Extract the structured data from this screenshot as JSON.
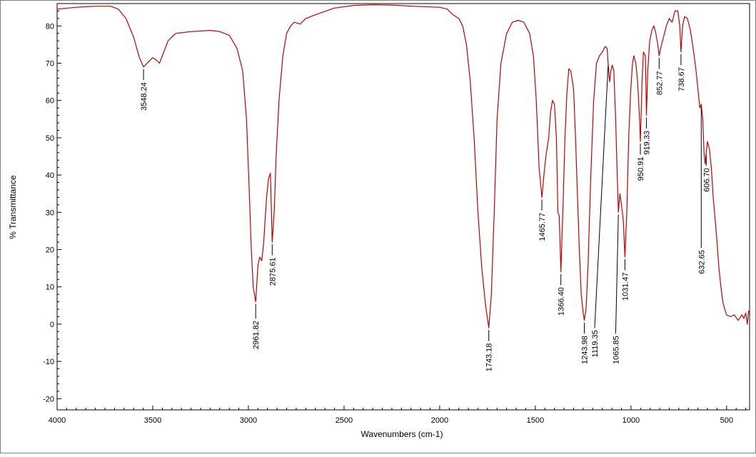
{
  "chart_data": {
    "type": "line",
    "title": "",
    "xlabel": "Wavenumbers (cm-1)",
    "ylabel": "% Transmittance",
    "xlim": [
      4000,
      380
    ],
    "ylim": [
      -23,
      86
    ],
    "x_ticks": [
      4000,
      3500,
      3000,
      2500,
      2000,
      1500,
      1000,
      500
    ],
    "y_ticks": [
      80,
      70,
      60,
      50,
      40,
      30,
      20,
      10,
      0,
      -10,
      -20
    ],
    "grid": false,
    "legend": "none",
    "colors": {
      "line": "#c00000",
      "axes": "#000000",
      "background": "#ffffff"
    },
    "series": [
      {
        "points": [
          [
            4000,
            84.5
          ],
          [
            3900,
            85
          ],
          [
            3800,
            85.3
          ],
          [
            3720,
            85.3
          ],
          [
            3680,
            84.5
          ],
          [
            3640,
            82
          ],
          [
            3600,
            77
          ],
          [
            3570,
            71.5
          ],
          [
            3548.24,
            69
          ],
          [
            3520,
            70.5
          ],
          [
            3500,
            71.5
          ],
          [
            3480,
            70.8
          ],
          [
            3465,
            70
          ],
          [
            3450,
            72
          ],
          [
            3420,
            76
          ],
          [
            3380,
            78
          ],
          [
            3300,
            78.5
          ],
          [
            3200,
            78.8
          ],
          [
            3150,
            78.5
          ],
          [
            3100,
            77.5
          ],
          [
            3060,
            74
          ],
          [
            3030,
            68
          ],
          [
            3010,
            55
          ],
          [
            2995,
            35
          ],
          [
            2985,
            20
          ],
          [
            2975,
            10
          ],
          [
            2961.82,
            6
          ],
          [
            2950,
            16
          ],
          [
            2940,
            18
          ],
          [
            2930,
            17
          ],
          [
            2920,
            22
          ],
          [
            2905,
            34
          ],
          [
            2895,
            39
          ],
          [
            2885,
            40.5
          ],
          [
            2875.61,
            22
          ],
          [
            2865,
            30
          ],
          [
            2855,
            45
          ],
          [
            2840,
            60
          ],
          [
            2820,
            72
          ],
          [
            2800,
            78
          ],
          [
            2780,
            80
          ],
          [
            2760,
            81
          ],
          [
            2730,
            80.5
          ],
          [
            2700,
            82
          ],
          [
            2650,
            83
          ],
          [
            2550,
            84.8
          ],
          [
            2450,
            85.5
          ],
          [
            2350,
            85.7
          ],
          [
            2250,
            85.6
          ],
          [
            2100,
            85.2
          ],
          [
            2000,
            85
          ],
          [
            1960,
            84.5
          ],
          [
            1930,
            83
          ],
          [
            1900,
            82
          ],
          [
            1880,
            80
          ],
          [
            1860,
            75
          ],
          [
            1840,
            65
          ],
          [
            1820,
            50
          ],
          [
            1800,
            30
          ],
          [
            1780,
            15
          ],
          [
            1760,
            5
          ],
          [
            1743.18,
            -1
          ],
          [
            1730,
            8
          ],
          [
            1715,
            30
          ],
          [
            1700,
            55
          ],
          [
            1680,
            70
          ],
          [
            1650,
            78
          ],
          [
            1620,
            81
          ],
          [
            1590,
            81.5
          ],
          [
            1560,
            81
          ],
          [
            1530,
            78
          ],
          [
            1510,
            72
          ],
          [
            1495,
            60
          ],
          [
            1480,
            42
          ],
          [
            1465.77,
            34
          ],
          [
            1455,
            40
          ],
          [
            1445,
            45
          ],
          [
            1430,
            50
          ],
          [
            1420,
            57
          ],
          [
            1410,
            60
          ],
          [
            1400,
            59
          ],
          [
            1390,
            50
          ],
          [
            1382,
            30
          ],
          [
            1375,
            29
          ],
          [
            1366.4,
            14
          ],
          [
            1355,
            32
          ],
          [
            1345,
            50
          ],
          [
            1335,
            62
          ],
          [
            1325,
            68.5
          ],
          [
            1315,
            68
          ],
          [
            1300,
            63
          ],
          [
            1290,
            50
          ],
          [
            1280,
            35
          ],
          [
            1270,
            20
          ],
          [
            1260,
            8
          ],
          [
            1250,
            3
          ],
          [
            1243.98,
            1
          ],
          [
            1235,
            4
          ],
          [
            1225,
            15
          ],
          [
            1210,
            40
          ],
          [
            1195,
            60
          ],
          [
            1180,
            70
          ],
          [
            1165,
            72
          ],
          [
            1150,
            73
          ],
          [
            1135,
            74.5
          ],
          [
            1125,
            74
          ],
          [
            1119.35,
            70
          ],
          [
            1112,
            65
          ],
          [
            1105,
            68
          ],
          [
            1098,
            69.5
          ],
          [
            1090,
            68
          ],
          [
            1080,
            55
          ],
          [
            1072,
            40
          ],
          [
            1065.85,
            30
          ],
          [
            1058,
            35
          ],
          [
            1050,
            32
          ],
          [
            1040,
            28
          ],
          [
            1031.47,
            18
          ],
          [
            1022,
            30
          ],
          [
            1012,
            50
          ],
          [
            1002,
            62
          ],
          [
            992,
            70
          ],
          [
            985,
            72
          ],
          [
            975,
            70
          ],
          [
            965,
            65
          ],
          [
            955,
            55
          ],
          [
            950.91,
            49
          ],
          [
            942,
            65
          ],
          [
            935,
            73
          ],
          [
            925,
            72
          ],
          [
            919.33,
            56
          ],
          [
            912,
            68
          ],
          [
            902,
            76
          ],
          [
            890,
            79
          ],
          [
            880,
            80
          ],
          [
            870,
            78
          ],
          [
            860,
            75
          ],
          [
            852.77,
            72
          ],
          [
            845,
            74
          ],
          [
            830,
            77
          ],
          [
            815,
            80
          ],
          [
            800,
            82
          ],
          [
            785,
            81
          ],
          [
            770,
            84
          ],
          [
            755,
            84
          ],
          [
            745,
            80
          ],
          [
            738.67,
            73
          ],
          [
            730,
            80
          ],
          [
            720,
            82.5
          ],
          [
            705,
            82
          ],
          [
            690,
            79
          ],
          [
            675,
            74
          ],
          [
            660,
            68
          ],
          [
            648,
            62
          ],
          [
            640,
            58
          ],
          [
            632.65,
            59
          ],
          [
            625,
            55
          ],
          [
            618,
            46
          ],
          [
            612,
            43
          ],
          [
            606.7,
            46
          ],
          [
            600,
            49
          ],
          [
            590,
            47
          ],
          [
            580,
            42
          ],
          [
            570,
            34
          ],
          [
            560,
            28
          ],
          [
            550,
            22
          ],
          [
            540,
            15
          ],
          [
            530,
            10
          ],
          [
            520,
            6
          ],
          [
            510,
            4
          ],
          [
            500,
            2.5
          ],
          [
            480,
            2
          ],
          [
            460,
            2.5
          ],
          [
            440,
            1
          ],
          [
            420,
            2.5
          ],
          [
            410,
            1.5
          ],
          [
            400,
            3
          ],
          [
            392,
            0
          ],
          [
            385,
            3.5
          ],
          [
            380,
            3
          ]
        ]
      }
    ],
    "annotations": [
      {
        "label": "3548.24",
        "x": 3548.24,
        "y": 69,
        "line_end_y": 67
      },
      {
        "label": "2961.82",
        "x": 2961.82,
        "y": 6,
        "line_end_y": 3
      },
      {
        "label": "2875.61",
        "x": 2875.61,
        "y": 22,
        "line_end_y": 20
      },
      {
        "label": "1743.18",
        "x": 1743.18,
        "y": -1,
        "line_end_y": -3
      },
      {
        "label": "1465.77",
        "x": 1465.77,
        "y": 34,
        "line_end_y": 32
      },
      {
        "label": "1366.40",
        "x": 1366.4,
        "y": 14,
        "line_end_y": 12
      },
      {
        "label": "1243.98",
        "x": 1243.98,
        "y": 1,
        "line_end_y": -1
      },
      {
        "label": "1119.35",
        "x": 1119.35,
        "y": 70,
        "line_end_y": 0.5,
        "label_x": 1190
      },
      {
        "label": "1065.85",
        "x": 1065.85,
        "y": 30,
        "line_end_y": -1,
        "label_x": 1080
      },
      {
        "label": "1031.47",
        "x": 1031.47,
        "y": 18,
        "line_end_y": 16
      },
      {
        "label": "950.91",
        "x": 950.91,
        "y": 49,
        "line_end_y": 47
      },
      {
        "label": "919.33",
        "x": 919.33,
        "y": 56,
        "line_end_y": 54
      },
      {
        "label": "852.77",
        "x": 852.77,
        "y": 72,
        "line_end_y": 70
      },
      {
        "label": "738.67",
        "x": 738.67,
        "y": 73,
        "line_end_y": 71
      },
      {
        "label": "632.65",
        "x": 632.65,
        "y": 59,
        "line_end_y": 22
      },
      {
        "label": "606.70",
        "x": 606.7,
        "y": 46,
        "line_end_y": 44
      }
    ]
  }
}
